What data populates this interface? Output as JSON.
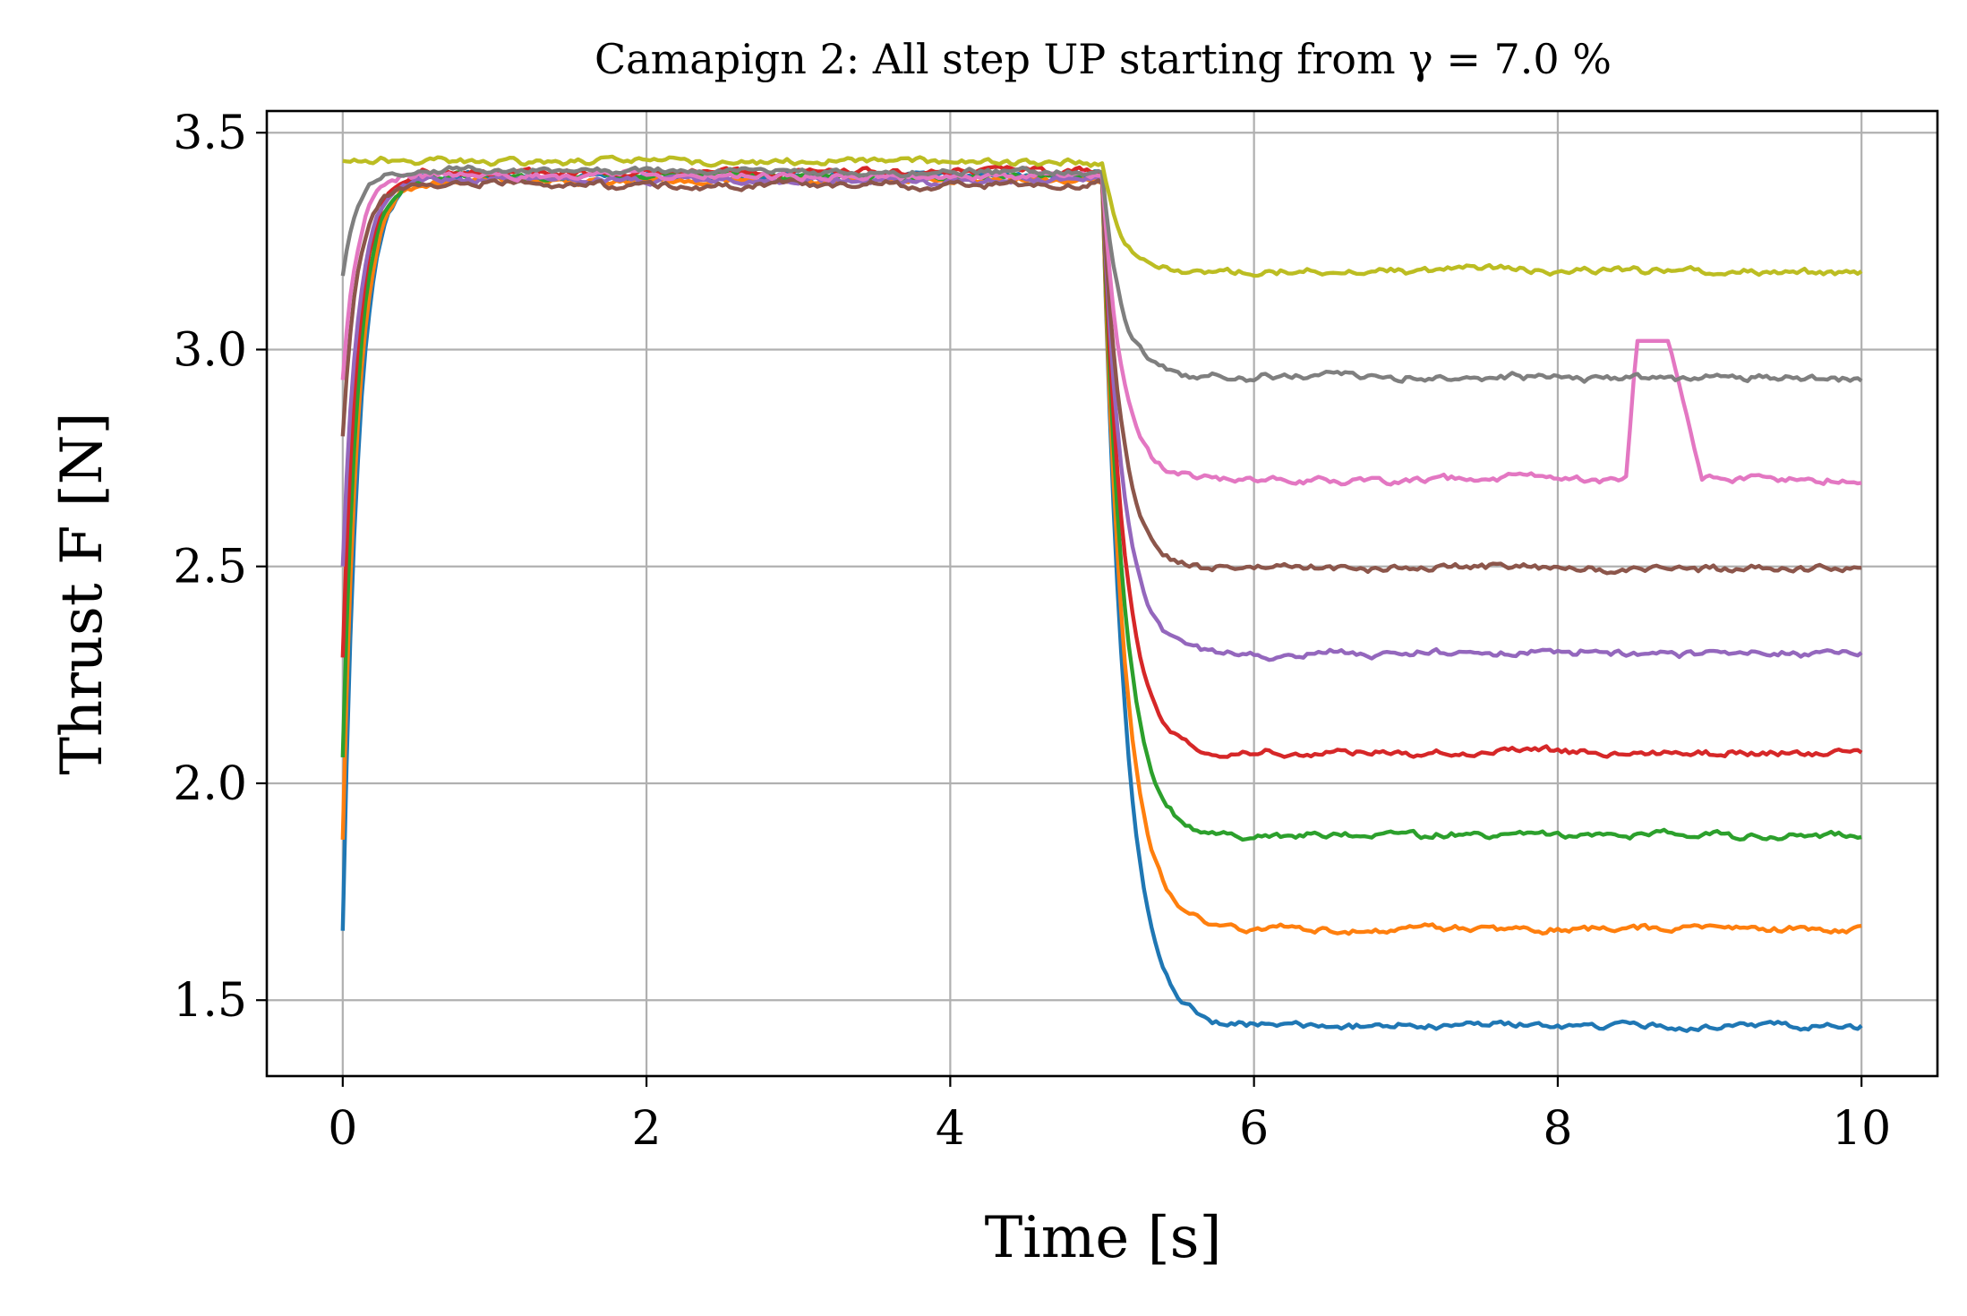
{
  "chart_data": {
    "type": "line",
    "title": "Camapign 2: All step UP starting from γ = 7.0 %",
    "xlabel": "Time [s]",
    "ylabel": "Thrust F [N]",
    "xlim": [
      -0.5,
      10.5
    ],
    "ylim": [
      1.325,
      3.55
    ],
    "xticks": [
      0,
      2,
      4,
      6,
      8,
      10
    ],
    "xtick_labels": [
      "0",
      "2",
      "4",
      "6",
      "8",
      "10"
    ],
    "yticks": [
      1.5,
      2.0,
      2.5,
      3.0,
      3.5
    ],
    "ytick_labels": [
      "1.5",
      "2.0",
      "2.5",
      "3.0",
      "3.5"
    ],
    "grid": true,
    "legend": "none",
    "step_time": 5.0,
    "series": [
      {
        "color": "#1f77b4",
        "initial": 1.66,
        "plateau": 3.4,
        "final": 1.44
      },
      {
        "color": "#ff7f0e",
        "initial": 1.87,
        "plateau": 3.39,
        "final": 1.665
      },
      {
        "color": "#2ca02c",
        "initial": 2.06,
        "plateau": 3.4,
        "final": 1.88
      },
      {
        "color": "#d62728",
        "initial": 2.29,
        "plateau": 3.41,
        "final": 2.07
      },
      {
        "color": "#9467bd",
        "initial": 2.5,
        "plateau": 3.39,
        "final": 2.3
      },
      {
        "color": "#8c564b",
        "initial": 2.8,
        "plateau": 3.38,
        "final": 2.495
      },
      {
        "color": "#e377c2",
        "initial": 2.93,
        "plateau": 3.4,
        "final": 2.7,
        "spike": {
          "t_start": 8.45,
          "t_end": 8.95,
          "level": 3.02
        }
      },
      {
        "color": "#7f7f7f",
        "initial": 3.17,
        "plateau": 3.41,
        "final": 2.935
      },
      {
        "color": "#bcbd22",
        "initial": 3.435,
        "plateau": 3.43,
        "final": 3.18
      }
    ]
  }
}
